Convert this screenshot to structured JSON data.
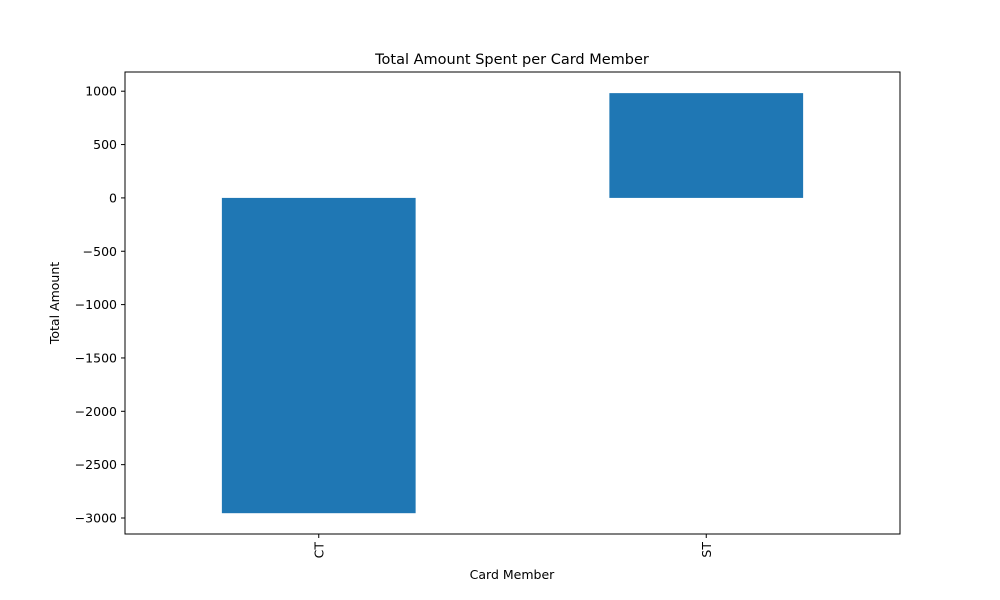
{
  "chart_data": {
    "type": "bar",
    "title": "Total Amount Spent per Card Member",
    "xlabel": "Card Member",
    "ylabel": "Total Amount",
    "categories": [
      "CT",
      "ST"
    ],
    "values": [
      -2955,
      982
    ],
    "ylim": [
      -3150,
      1180
    ],
    "yticks": [
      1000,
      500,
      0,
      -500,
      -1000,
      -1500,
      -2000,
      -2500,
      -3000
    ],
    "ytick_labels": [
      "1000",
      "500",
      "0",
      "−500",
      "−1000",
      "−1500",
      "−2000",
      "−2500",
      "−3000"
    ],
    "bar_color": "#1f77b4",
    "grid": false,
    "legend": "none"
  }
}
